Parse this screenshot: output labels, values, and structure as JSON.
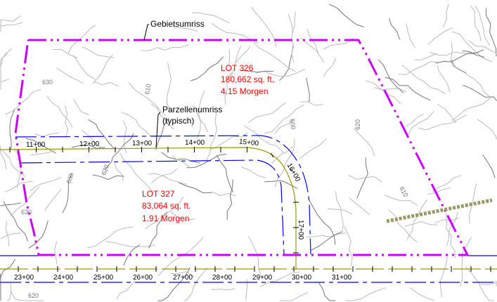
{
  "labels": {
    "area_boundary": "Gebietsumriss",
    "parcel_boundary_1": "Parzellenumriss",
    "parcel_boundary_2": "(typisch)"
  },
  "lots": [
    {
      "name": "LOT 326",
      "area": "180,662 sq. ft.",
      "acres": "4.15 Morgen"
    },
    {
      "name": "LOT 327",
      "area": "83,064 sq. ft.",
      "acres": "1.91 Morgen"
    }
  ],
  "upper_road_stations": [
    "11+00",
    "12+00",
    "13+00",
    "14+00",
    "15+00",
    "16+00",
    "17+00"
  ],
  "lower_road_stations": [
    "23+00",
    "24+00",
    "25+00",
    "26+00",
    "27+00",
    "28+00",
    "29+00",
    "30+00",
    "31+00"
  ],
  "contour_labels": [
    "610",
    "630",
    "620",
    "630",
    "600",
    "620",
    "610",
    "630",
    "620"
  ],
  "colors": {
    "boundary": "#cc00ff",
    "road_edge": "#0000ff",
    "centerline": "#999900",
    "contour": "#aaaaaa",
    "lot_text": "#ff0000"
  }
}
